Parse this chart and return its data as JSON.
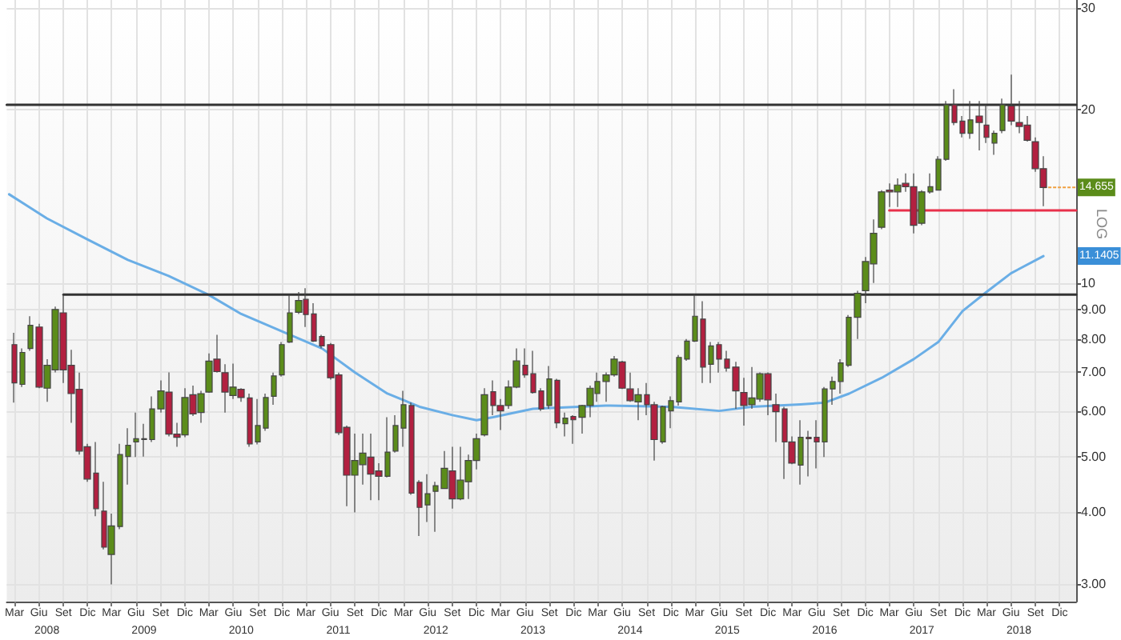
{
  "chart_data": {
    "type": "candlestick",
    "log": true,
    "grid": true,
    "marker": "none",
    "xlim": [
      "2008-02",
      "2019-02"
    ],
    "x2lim": [
      "2008-02",
      "2019-02"
    ],
    "ylim": [
      2.8,
      31
    ],
    "yticks": [
      {
        "value": 3,
        "label": "3.00"
      },
      {
        "value": 4,
        "label": "4.00"
      },
      {
        "value": 5,
        "label": "5.00"
      },
      {
        "value": 6,
        "label": "6.00"
      },
      {
        "value": 7,
        "label": "7.00"
      },
      {
        "value": 8,
        "label": "8.00"
      },
      {
        "value": 9,
        "label": "9.00"
      },
      10,
      20,
      30
    ],
    "xticks": [
      {
        "value": "2008-03",
        "label": "Mar"
      },
      {
        "value": "2008-06",
        "label": "Giu"
      },
      {
        "value": "2008-09",
        "label": "Set"
      },
      {
        "value": "2008-12",
        "label": "Dic"
      },
      {
        "value": "2009-03",
        "label": "Mar"
      },
      {
        "value": "2009-06",
        "label": "Giu"
      },
      {
        "value": "2009-09",
        "label": "Set"
      },
      {
        "value": "2009-12",
        "label": "Dic"
      },
      {
        "value": "2010-03",
        "label": "Mar"
      },
      {
        "value": "2010-06",
        "label": "Giu"
      },
      {
        "value": "2010-09",
        "label": "Set"
      },
      {
        "value": "2010-12",
        "label": "Dic"
      },
      {
        "value": "2011-03",
        "label": "Mar"
      },
      {
        "value": "2011-06",
        "label": "Giu"
      },
      {
        "value": "2011-09",
        "label": "Set"
      },
      {
        "value": "2011-12",
        "label": "Dic"
      },
      {
        "value": "2012-03",
        "label": "Mar"
      },
      {
        "value": "2012-06",
        "label": "Giu"
      },
      {
        "value": "2012-09",
        "label": "Set"
      },
      {
        "value": "2012-12",
        "label": "Dic"
      },
      {
        "value": "2013-03",
        "label": "Mar"
      },
      {
        "value": "2013-06",
        "label": "Giu"
      },
      {
        "value": "2013-09",
        "label": "Set"
      },
      {
        "value": "2013-12",
        "label": "Dic"
      },
      {
        "value": "2014-03",
        "label": "Mar"
      },
      {
        "value": "2014-06",
        "label": "Giu"
      },
      {
        "value": "2014-09",
        "label": "Set"
      },
      {
        "value": "2014-12",
        "label": "Dic"
      },
      {
        "value": "2015-03",
        "label": "Mar"
      },
      {
        "value": "2015-06",
        "label": "Giu"
      },
      {
        "value": "2015-09",
        "label": "Set"
      },
      {
        "value": "2015-12",
        "label": "Dic"
      },
      {
        "value": "2016-03",
        "label": "Mar"
      },
      {
        "value": "2016-06",
        "label": "Giu"
      },
      {
        "value": "2016-09",
        "label": "Set"
      },
      {
        "value": "2016-12",
        "label": "Dic"
      },
      {
        "value": "2017-03",
        "label": "Mar"
      },
      {
        "value": "2017-06",
        "label": "Giu"
      },
      {
        "value": "2017-09",
        "label": "Set"
      },
      {
        "value": "2017-12",
        "label": "Dic"
      },
      {
        "value": "2018-03",
        "label": "Mar"
      },
      {
        "value": "2018-06",
        "label": "Giu"
      },
      {
        "value": "2018-09",
        "label": "Set"
      },
      {
        "value": "2018-12",
        "label": "Dic"
      }
    ],
    "x2ticks": [
      {
        "value": "2008-07",
        "label": "2008"
      },
      {
        "value": "2009-07",
        "label": "2009"
      },
      {
        "value": "2010-07",
        "label": "2010"
      },
      {
        "value": "2011-07",
        "label": "2011"
      },
      {
        "value": "2012-07",
        "label": "2012"
      },
      {
        "value": "2013-07",
        "label": "2013"
      },
      {
        "value": "2014-07",
        "label": "2014"
      },
      {
        "value": "2015-07",
        "label": "2015"
      },
      {
        "value": "2016-07",
        "label": "2016"
      },
      {
        "value": "2017-07",
        "label": "2017"
      },
      {
        "value": "2018-07",
        "label": "2018"
      }
    ],
    "annotations": [
      {
        "text": "14.655",
        "x": "2018-10",
        "y": 14.655
      },
      {
        "text": "11.1405",
        "y": 11.1405
      },
      "LOG"
    ],
    "series": [
      {
        "type": "line",
        "color": "#6aaee6",
        "x": [
          "2008-02-10",
          "2008-07",
          "2008-12",
          "2009-05",
          "2009-10",
          "2010-03",
          "2010-07",
          "2011-01",
          "2011-05",
          "2011-09",
          "2012-01",
          "2012-05",
          "2012-09",
          "2012-12",
          "2013-02",
          "2013-07",
          "2014-04",
          "2014-12",
          "2015-06",
          "2015-10",
          "2016-04",
          "2016-07",
          "2016-10",
          "2017-02",
          "2017-06",
          "2017-09",
          "2017-12",
          "2018-03",
          "2018-06",
          "2018-10"
        ],
        "values": [
          14.26,
          12.95,
          11.9,
          10.97,
          10.29,
          9.54,
          8.84,
          8.13,
          7.7,
          7.0,
          6.43,
          6.1,
          5.9,
          5.78,
          5.85,
          6.05,
          6.13,
          6.1,
          6.0,
          6.1,
          6.16,
          6.2,
          6.43,
          6.85,
          7.38,
          7.9,
          8.94,
          9.65,
          10.4,
          11.1405
        ]
      },
      {
        "type": "line",
        "color": "#333333",
        "x": [
          "2008-02",
          "2019-02"
        ],
        "values": [
          20.4,
          20.4
        ]
      },
      {
        "type": "line",
        "color": "#333333",
        "x": [
          "2008-09",
          "2019-02"
        ],
        "values": [
          9.55,
          9.55
        ]
      },
      {
        "type": "line",
        "color": "#e8304a",
        "x": [
          "2017-03",
          "2019-02"
        ],
        "values": [
          13.37,
          13.37
        ]
      },
      {
        "x": [
          "2008-03",
          "2008-04",
          "2008-05",
          "2008-06",
          "2008-07",
          "2008-08",
          "2008-09",
          "2008-10",
          "2008-11",
          "2008-12",
          "2009-01",
          "2009-02",
          "2009-03",
          "2009-04",
          "2009-05",
          "2009-06",
          "2009-07",
          "2009-08",
          "2009-09",
          "2009-10",
          "2009-11",
          "2009-12",
          "2010-01",
          "2010-02",
          "2010-03",
          "2010-04",
          "2010-05",
          "2010-06",
          "2010-07",
          "2010-08",
          "2010-09",
          "2010-10",
          "2010-11",
          "2010-12",
          "2011-01",
          "2011-02",
          "2011-03",
          "2011-04",
          "2011-05",
          "2011-06",
          "2011-07",
          "2011-08",
          "2011-09",
          "2011-10",
          "2011-11",
          "2011-12",
          "2012-01",
          "2012-02",
          "2012-03",
          "2012-04",
          "2012-05",
          "2012-06",
          "2012-07",
          "2012-08",
          "2012-09",
          "2012-10",
          "2012-11",
          "2012-12",
          "2013-01",
          "2013-02",
          "2013-03",
          "2013-04",
          "2013-05",
          "2013-06",
          "2013-07",
          "2013-08",
          "2013-09",
          "2013-10",
          "2013-11",
          "2013-12",
          "2014-01",
          "2014-02",
          "2014-03",
          "2014-04",
          "2014-05",
          "2014-06",
          "2014-07",
          "2014-08",
          "2014-09",
          "2014-10",
          "2014-11",
          "2014-12",
          "2015-01",
          "2015-02",
          "2015-03",
          "2015-04",
          "2015-05",
          "2015-06",
          "2015-07",
          "2015-08",
          "2015-09",
          "2015-10",
          "2015-11",
          "2015-12",
          "2016-01",
          "2016-02",
          "2016-03",
          "2016-04",
          "2016-05",
          "2016-06",
          "2016-07",
          "2016-08",
          "2016-09",
          "2016-10",
          "2016-11",
          "2016-12",
          "2017-01",
          "2017-02",
          "2017-03",
          "2017-04",
          "2017-05",
          "2017-06",
          "2017-07",
          "2017-08",
          "2017-09",
          "2017-10",
          "2017-11",
          "2017-12",
          "2018-01",
          "2018-02",
          "2018-03",
          "2018-04",
          "2018-05",
          "2018-06",
          "2018-07",
          "2018-08",
          "2018-09",
          "2018-10"
        ],
        "ohlc": [
          [
            7.82,
            8.2,
            6.2,
            6.71
          ],
          [
            6.67,
            7.7,
            6.6,
            7.58
          ],
          [
            7.7,
            8.76,
            7.63,
            8.45
          ],
          [
            8.39,
            8.5,
            6.57,
            6.6
          ],
          [
            6.57,
            7.38,
            6.22,
            7.2
          ],
          [
            7.07,
            9.1,
            7.0,
            9.0
          ],
          [
            8.88,
            9.55,
            6.71,
            7.07
          ],
          [
            7.2,
            7.66,
            5.72,
            6.43
          ],
          [
            6.54,
            6.99,
            5.04,
            5.11
          ],
          [
            5.2,
            5.26,
            4.52,
            4.57
          ],
          [
            4.68,
            5.3,
            3.94,
            4.06
          ],
          [
            4.02,
            4.52,
            3.45,
            3.48
          ],
          [
            3.38,
            3.98,
            3.0,
            3.79
          ],
          [
            3.78,
            5.26,
            3.74,
            5.04
          ],
          [
            5.0,
            5.6,
            4.47,
            5.23
          ],
          [
            5.3,
            5.96,
            4.99,
            5.37
          ],
          [
            5.35,
            5.7,
            5.0,
            5.37
          ],
          [
            5.35,
            6.36,
            5.3,
            6.05
          ],
          [
            6.05,
            6.78,
            5.96,
            6.5
          ],
          [
            6.47,
            7.0,
            5.42,
            5.47
          ],
          [
            5.47,
            5.72,
            5.2,
            5.4
          ],
          [
            5.45,
            6.57,
            5.4,
            6.33
          ],
          [
            6.4,
            6.64,
            5.88,
            5.93
          ],
          [
            5.96,
            6.5,
            5.72,
            6.43
          ],
          [
            6.47,
            7.55,
            6.45,
            7.32
          ],
          [
            7.38,
            8.13,
            6.99,
            7.02
          ],
          [
            6.99,
            7.23,
            5.96,
            6.47
          ],
          [
            6.38,
            7.25,
            6.29,
            6.6
          ],
          [
            6.54,
            6.57,
            6.22,
            6.33
          ],
          [
            6.32,
            6.43,
            5.2,
            5.26
          ],
          [
            5.3,
            6.29,
            5.25,
            5.66
          ],
          [
            5.6,
            6.43,
            5.54,
            6.33
          ],
          [
            6.36,
            6.99,
            6.15,
            6.9
          ],
          [
            6.93,
            7.9,
            6.88,
            7.82
          ],
          [
            7.9,
            9.54,
            7.87,
            8.88
          ],
          [
            8.9,
            9.65,
            8.84,
            9.33
          ],
          [
            9.37,
            9.8,
            8.39,
            8.82
          ],
          [
            8.84,
            9.23,
            7.9,
            7.93
          ],
          [
            8.08,
            8.13,
            7.7,
            7.78
          ],
          [
            7.82,
            7.87,
            6.8,
            6.85
          ],
          [
            6.93,
            6.99,
            5.45,
            5.5
          ],
          [
            5.62,
            5.66,
            4.1,
            4.64
          ],
          [
            4.64,
            5.48,
            4.0,
            4.92
          ],
          [
            4.84,
            5.48,
            4.47,
            5.07
          ],
          [
            4.99,
            5.48,
            4.2,
            4.66
          ],
          [
            4.72,
            4.87,
            4.2,
            4.62
          ],
          [
            4.62,
            5.85,
            4.6,
            5.09
          ],
          [
            5.11,
            5.9,
            5.08,
            5.66
          ],
          [
            5.6,
            6.5,
            5.2,
            6.15
          ],
          [
            6.13,
            6.2,
            4.29,
            4.32
          ],
          [
            4.51,
            4.55,
            3.64,
            4.08
          ],
          [
            4.12,
            4.66,
            3.85,
            4.31
          ],
          [
            4.35,
            4.52,
            3.7,
            4.45
          ],
          [
            4.4,
            5.11,
            4.4,
            4.77
          ],
          [
            4.72,
            5.2,
            4.06,
            4.22
          ],
          [
            4.22,
            5.2,
            4.2,
            4.55
          ],
          [
            4.52,
            5.04,
            4.22,
            4.92
          ],
          [
            4.92,
            5.48,
            4.75,
            5.37
          ],
          [
            5.45,
            6.57,
            5.42,
            6.4
          ],
          [
            6.48,
            6.78,
            5.9,
            6.13
          ],
          [
            6.13,
            6.29,
            5.56,
            6.0
          ],
          [
            6.13,
            6.78,
            6.05,
            6.6
          ],
          [
            6.6,
            7.7,
            6.57,
            7.33
          ],
          [
            7.2,
            7.7,
            6.85,
            6.93
          ],
          [
            6.96,
            7.63,
            6.43,
            6.46
          ],
          [
            6.5,
            6.57,
            6.0,
            6.05
          ],
          [
            6.13,
            7.18,
            6.05,
            6.82
          ],
          [
            6.78,
            6.82,
            5.6,
            5.72
          ],
          [
            5.7,
            5.96,
            5.42,
            5.83
          ],
          [
            5.87,
            5.9,
            5.26,
            5.79
          ],
          [
            5.85,
            6.15,
            5.48,
            6.13
          ],
          [
            6.13,
            6.64,
            5.85,
            6.57
          ],
          [
            6.43,
            6.99,
            6.22,
            6.75
          ],
          [
            6.75,
            7.0,
            6.22,
            6.93
          ],
          [
            6.93,
            7.47,
            6.88,
            7.38
          ],
          [
            7.3,
            7.33,
            6.55,
            6.57
          ],
          [
            6.55,
            6.99,
            6.22,
            6.25
          ],
          [
            6.22,
            6.57,
            5.78,
            6.4
          ],
          [
            6.4,
            6.71,
            5.9,
            6.15
          ],
          [
            6.15,
            6.22,
            4.92,
            5.35
          ],
          [
            5.3,
            6.13,
            5.26,
            6.1
          ],
          [
            6.0,
            6.36,
            5.6,
            6.25
          ],
          [
            6.22,
            7.5,
            6.13,
            7.43
          ],
          [
            7.38,
            8.0,
            7.33,
            7.93
          ],
          [
            7.93,
            9.55,
            7.9,
            8.76
          ],
          [
            8.66,
            9.3,
            6.71,
            7.15
          ],
          [
            7.23,
            7.9,
            6.71,
            7.78
          ],
          [
            7.82,
            7.9,
            6.99,
            7.38
          ],
          [
            7.38,
            7.63,
            7.02,
            7.12
          ],
          [
            7.15,
            7.3,
            6.05,
            6.5
          ],
          [
            6.46,
            6.85,
            5.66,
            6.13
          ],
          [
            6.15,
            7.15,
            6.05,
            6.32
          ],
          [
            6.29,
            7.0,
            6.22,
            6.96
          ],
          [
            6.96,
            7.0,
            5.9,
            6.27
          ],
          [
            6.15,
            6.43,
            5.3,
            5.98
          ],
          [
            6.05,
            6.1,
            4.57,
            5.3
          ],
          [
            5.3,
            5.42,
            4.85,
            4.87
          ],
          [
            4.83,
            5.78,
            4.47,
            5.4
          ],
          [
            5.4,
            5.54,
            4.62,
            5.37
          ],
          [
            5.4,
            5.78,
            4.77,
            5.3
          ],
          [
            5.3,
            6.6,
            4.99,
            6.55
          ],
          [
            6.55,
            6.88,
            6.15,
            6.75
          ],
          [
            6.75,
            7.38,
            6.43,
            7.27
          ],
          [
            7.2,
            8.8,
            7.15,
            8.72
          ],
          [
            8.72,
            9.7,
            8.0,
            9.6
          ],
          [
            9.7,
            11.1,
            9.23,
            10.9
          ],
          [
            10.8,
            12.9,
            10.0,
            12.2
          ],
          [
            12.5,
            14.5,
            12.4,
            14.4
          ],
          [
            14.5,
            14.9,
            13.55,
            14.4
          ],
          [
            14.4,
            15.2,
            13.55,
            14.8
          ],
          [
            14.9,
            15.5,
            14.4,
            14.7
          ],
          [
            14.7,
            15.5,
            12.2,
            12.6
          ],
          [
            12.7,
            14.5,
            12.6,
            14.4
          ],
          [
            14.4,
            15.5,
            14.3,
            14.7
          ],
          [
            14.5,
            16.6,
            14.5,
            16.4
          ],
          [
            16.4,
            20.7,
            16.3,
            20.4
          ],
          [
            20.4,
            21.7,
            18.8,
            19.0
          ],
          [
            19.1,
            19.5,
            17.9,
            18.2
          ],
          [
            18.2,
            20.7,
            17.8,
            19.2
          ],
          [
            19.5,
            20.7,
            17.0,
            19.0
          ],
          [
            18.8,
            20.4,
            17.5,
            17.9
          ],
          [
            17.5,
            18.4,
            16.7,
            18.2
          ],
          [
            18.4,
            20.9,
            18.2,
            20.4
          ],
          [
            20.3,
            23.0,
            18.8,
            19.1
          ],
          [
            19.0,
            20.7,
            18.2,
            18.7
          ],
          [
            18.8,
            19.5,
            17.6,
            17.7
          ],
          [
            17.6,
            17.9,
            15.6,
            15.8
          ],
          [
            15.8,
            16.6,
            13.6,
            14.655
          ]
        ],
        "colors": [
          "#b22040",
          "#5b8c1a",
          "#5b8c1a",
          "#b22040",
          "#5b8c1a",
          "#5b8c1a",
          "#b22040",
          "#b22040",
          "#b22040",
          "#b22040",
          "#b22040",
          "#b22040",
          "#5b8c1a",
          "#5b8c1a",
          "#5b8c1a",
          "#5b8c1a",
          "#5b8c1a",
          "#5b8c1a",
          "#5b8c1a",
          "#b22040",
          "#b22040",
          "#5b8c1a",
          "#b22040",
          "#5b8c1a",
          "#5b8c1a",
          "#b22040",
          "#b22040",
          "#5b8c1a",
          "#b22040",
          "#b22040",
          "#5b8c1a",
          "#5b8c1a",
          "#5b8c1a",
          "#5b8c1a",
          "#5b8c1a",
          "#5b8c1a",
          "#b22040",
          "#b22040",
          "#b22040",
          "#b22040",
          "#b22040",
          "#b22040",
          "#5b8c1a",
          "#5b8c1a",
          "#b22040",
          "#b22040",
          "#5b8c1a",
          "#5b8c1a",
          "#5b8c1a",
          "#b22040",
          "#b22040",
          "#5b8c1a",
          "#5b8c1a",
          "#5b8c1a",
          "#b22040",
          "#5b8c1a",
          "#5b8c1a",
          "#5b8c1a",
          "#5b8c1a",
          "#b22040",
          "#b22040",
          "#5b8c1a",
          "#5b8c1a",
          "#b22040",
          "#b22040",
          "#b22040",
          "#5b8c1a",
          "#b22040",
          "#5b8c1a",
          "#b22040",
          "#5b8c1a",
          "#5b8c1a",
          "#5b8c1a",
          "#5b8c1a",
          "#5b8c1a",
          "#b22040",
          "#b22040",
          "#5b8c1a",
          "#b22040",
          "#b22040",
          "#5b8c1a",
          "#5b8c1a",
          "#5b8c1a",
          "#5b8c1a",
          "#5b8c1a",
          "#b22040",
          "#5b8c1a",
          "#b22040",
          "#b22040",
          "#b22040",
          "#b22040",
          "#5b8c1a",
          "#5b8c1a",
          "#b22040",
          "#b22040",
          "#b22040",
          "#b22040",
          "#5b8c1a",
          "#b22040",
          "#b22040",
          "#5b8c1a",
          "#5b8c1a",
          "#5b8c1a",
          "#5b8c1a",
          "#5b8c1a",
          "#5b8c1a",
          "#5b8c1a",
          "#5b8c1a",
          "#b22040",
          "#5b8c1a",
          "#b22040",
          "#b22040",
          "#5b8c1a",
          "#5b8c1a",
          "#5b8c1a",
          "#5b8c1a",
          "#b22040",
          "#b22040",
          "#5b8c1a",
          "#b22040",
          "#b22040",
          "#5b8c1a",
          "#5b8c1a",
          "#b22040",
          "#b22040",
          "#b22040",
          "#b22040",
          "#b22040"
        ]
      }
    ]
  }
}
